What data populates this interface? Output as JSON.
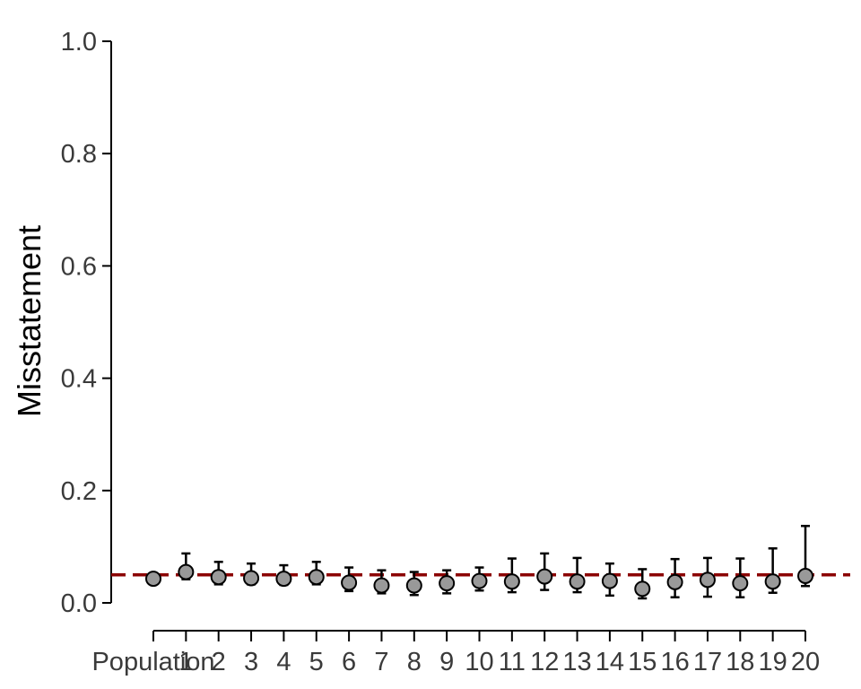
{
  "chart_data": {
    "type": "scatter",
    "title": "",
    "xlabel": "",
    "ylabel": "Misstatement",
    "ylim": [
      0,
      1
    ],
    "yticks": [
      "0.0",
      "0.2",
      "0.4",
      "0.6",
      "0.8",
      "1.0"
    ],
    "categories": [
      "Population",
      "1",
      "2",
      "3",
      "4",
      "5",
      "6",
      "7",
      "8",
      "9",
      "10",
      "11",
      "12",
      "13",
      "14",
      "15",
      "16",
      "17",
      "18",
      "19",
      "20"
    ],
    "values": [
      0.043,
      0.055,
      0.046,
      0.044,
      0.043,
      0.046,
      0.036,
      0.031,
      0.031,
      0.035,
      0.039,
      0.038,
      0.047,
      0.038,
      0.039,
      0.025,
      0.037,
      0.041,
      0.035,
      0.038,
      0.048
    ],
    "error_lower": [
      null,
      0.042,
      0.033,
      0.033,
      0.032,
      0.033,
      0.021,
      0.017,
      0.014,
      0.017,
      0.022,
      0.019,
      0.023,
      0.019,
      0.013,
      0.008,
      0.01,
      0.011,
      0.01,
      0.018,
      0.03
    ],
    "error_upper": [
      null,
      0.088,
      0.073,
      0.07,
      0.067,
      0.073,
      0.063,
      0.058,
      0.055,
      0.058,
      0.063,
      0.079,
      0.088,
      0.08,
      0.07,
      0.06,
      0.078,
      0.08,
      0.079,
      0.097,
      0.137
    ],
    "reference_line": 0.05,
    "grid": false,
    "legend": "none",
    "colors": {
      "point": "#999999",
      "reference_line": "#8b0000",
      "axis": "#000000"
    }
  }
}
